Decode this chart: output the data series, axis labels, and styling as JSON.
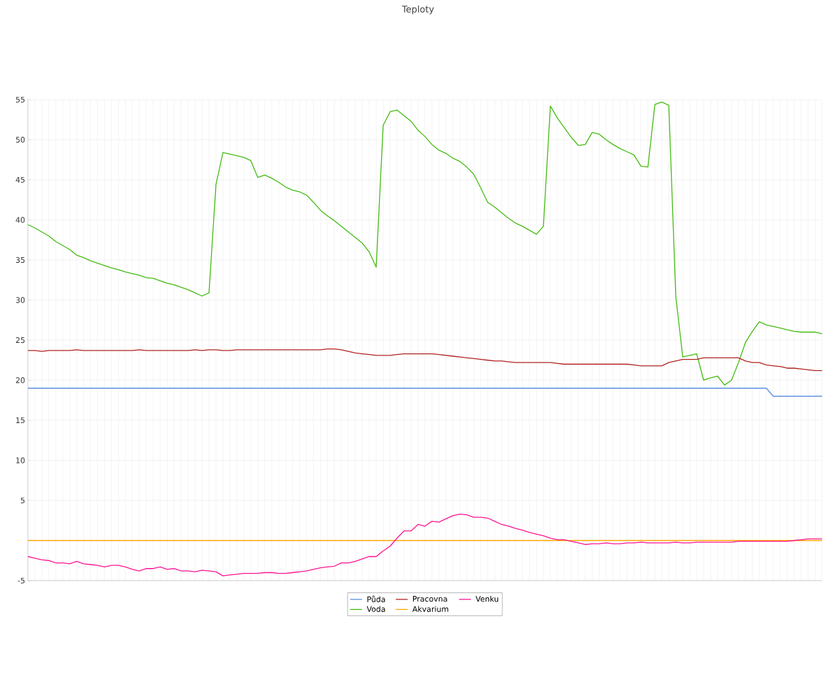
{
  "chart_data": {
    "type": "line",
    "title": "Teploty",
    "categories": [
      null,
      null,
      null,
      null,
      null,
      null,
      null,
      null,
      null,
      null,
      null,
      null,
      null,
      null,
      null,
      null,
      null,
      null,
      null,
      null,
      null,
      null,
      null,
      null,
      null,
      null,
      null,
      null,
      null,
      null,
      null,
      null,
      null,
      null,
      null,
      null,
      null,
      null,
      null,
      null,
      null,
      null,
      null,
      null,
      null,
      null,
      null,
      null,
      null,
      null,
      null,
      null,
      null,
      null,
      null,
      null,
      null,
      null,
      null,
      null,
      null,
      null,
      null,
      null,
      null,
      null,
      null,
      null,
      null,
      null,
      null,
      null,
      null,
      null,
      null,
      null,
      null,
      null,
      null,
      null,
      null,
      null,
      null,
      null,
      null,
      null,
      null,
      null,
      null,
      null,
      null,
      null,
      null,
      null,
      null,
      null,
      null,
      null,
      null,
      null,
      null,
      null,
      null,
      null,
      null,
      null,
      null,
      null,
      null,
      null,
      null,
      null,
      null,
      null,
      null
    ],
    "series": [
      {
        "name": "Půda",
        "color": "#5b8fe0",
        "values": [
          19,
          19,
          19,
          19,
          19,
          19,
          19,
          19,
          19,
          19,
          19,
          19,
          19,
          19,
          19,
          19,
          19,
          19,
          19,
          19,
          19,
          19,
          19,
          19,
          19,
          19,
          19,
          19,
          19,
          19,
          19,
          19,
          19,
          19,
          19,
          19,
          19,
          19,
          19,
          19,
          19,
          19,
          19,
          19,
          19,
          19,
          19,
          19,
          19,
          19,
          19,
          19,
          19,
          19,
          19,
          19,
          19,
          19,
          19,
          19,
          19,
          19,
          19,
          19,
          19,
          19,
          19,
          19,
          19,
          19,
          19,
          19,
          19,
          19,
          19,
          19,
          19,
          19,
          19,
          19,
          19,
          19,
          19,
          19,
          19,
          19,
          19,
          19,
          19,
          19,
          19,
          19,
          19,
          19,
          19,
          19,
          19,
          19,
          19,
          19,
          19,
          19,
          19,
          19,
          19,
          19,
          19,
          18,
          18,
          18,
          18,
          18,
          18,
          18,
          18
        ]
      },
      {
        "name": "Voda",
        "color": "#44bb11",
        "values": [
          39.4,
          39.0,
          38.5,
          38.0,
          37.3,
          36.8,
          36.3,
          35.6,
          35.3,
          34.9,
          34.6,
          34.3,
          34.0,
          33.8,
          33.5,
          33.3,
          33.1,
          32.8,
          32.7,
          32.4,
          32.1,
          31.9,
          31.6,
          31.3,
          30.9,
          30.5,
          30.9,
          44.4,
          48.4,
          48.2,
          48.0,
          47.8,
          47.4,
          45.3,
          45.6,
          45.2,
          44.7,
          44.1,
          43.7,
          43.5,
          43.1,
          42.2,
          41.2,
          40.5,
          39.9,
          39.2,
          38.5,
          37.8,
          37.1,
          36.0,
          34.1,
          51.8,
          53.5,
          53.7,
          53.0,
          52.3,
          51.2,
          50.4,
          49.4,
          48.7,
          48.3,
          47.7,
          47.3,
          46.6,
          45.7,
          44.0,
          42.2,
          41.6,
          40.9,
          40.2,
          39.6,
          39.2,
          38.7,
          38.2,
          39.2,
          54.2,
          52.7,
          51.5,
          50.3,
          49.3,
          49.4,
          50.9,
          50.7,
          50.0,
          49.4,
          48.9,
          48.5,
          48.1,
          46.7,
          46.6,
          54.4,
          54.7,
          54.3,
          30.5,
          22.9,
          23.1,
          23.3,
          20.0,
          20.3,
          20.5,
          19.4,
          20.0,
          22.2,
          24.7,
          26.1,
          27.3,
          26.9,
          26.7,
          26.5,
          26.3,
          26.1,
          26.0,
          26.0,
          26.0,
          25.8
        ]
      },
      {
        "name": "Pracovna",
        "color": "#b22222",
        "values": [
          23.7,
          23.7,
          23.6,
          23.7,
          23.7,
          23.7,
          23.7,
          23.8,
          23.7,
          23.7,
          23.7,
          23.7,
          23.7,
          23.7,
          23.7,
          23.7,
          23.8,
          23.7,
          23.7,
          23.7,
          23.7,
          23.7,
          23.7,
          23.7,
          23.8,
          23.7,
          23.8,
          23.8,
          23.7,
          23.7,
          23.8,
          23.8,
          23.8,
          23.8,
          23.8,
          23.8,
          23.8,
          23.8,
          23.8,
          23.8,
          23.8,
          23.8,
          23.8,
          23.9,
          23.9,
          23.8,
          23.6,
          23.4,
          23.3,
          23.2,
          23.1,
          23.1,
          23.1,
          23.2,
          23.3,
          23.3,
          23.3,
          23.3,
          23.3,
          23.2,
          23.1,
          23.0,
          22.9,
          22.8,
          22.7,
          22.6,
          22.5,
          22.4,
          22.4,
          22.3,
          22.2,
          22.2,
          22.2,
          22.2,
          22.2,
          22.2,
          22.1,
          22.0,
          22.0,
          22.0,
          22.0,
          22.0,
          22.0,
          22.0,
          22.0,
          22.0,
          22.0,
          21.9,
          21.8,
          21.8,
          21.8,
          21.8,
          22.2,
          22.4,
          22.6,
          22.6,
          22.6,
          22.8,
          22.8,
          22.8,
          22.8,
          22.8,
          22.8,
          22.4,
          22.2,
          22.2,
          21.9,
          21.8,
          21.7,
          21.5,
          21.5,
          21.4,
          21.3,
          21.2,
          21.2
        ]
      },
      {
        "name": "Akvarium",
        "color": "#ffa500",
        "values": [
          0,
          0,
          0,
          0,
          0,
          0,
          0,
          0,
          0,
          0,
          0,
          0,
          0,
          0,
          0,
          0,
          0,
          0,
          0,
          0,
          0,
          0,
          0,
          0,
          0,
          0,
          0,
          0,
          0,
          0,
          0,
          0,
          0,
          0,
          0,
          0,
          0,
          0,
          0,
          0,
          0,
          0,
          0,
          0,
          0,
          0,
          0,
          0,
          0,
          0,
          0,
          0,
          0,
          0,
          0,
          0,
          0,
          0,
          0,
          0,
          0,
          0,
          0,
          0,
          0,
          0,
          0,
          0,
          0,
          0,
          0,
          0,
          0,
          0,
          0,
          0,
          0,
          0,
          0,
          0,
          0,
          0,
          0,
          0,
          0,
          0,
          0,
          0,
          0,
          0,
          0,
          0,
          0,
          0,
          0,
          0,
          0,
          0,
          0,
          0,
          0,
          0,
          0,
          0,
          0,
          0,
          0,
          0,
          0,
          0,
          0,
          0,
          0,
          0,
          0
        ]
      },
      {
        "name": "Venku",
        "color": "#ff1493",
        "values": [
          -2.0,
          -2.2,
          -2.4,
          -2.5,
          -2.8,
          -2.8,
          -2.9,
          -2.6,
          -2.9,
          -3.0,
          -3.1,
          -3.3,
          -3.1,
          -3.1,
          -3.3,
          -3.6,
          -3.8,
          -3.5,
          -3.5,
          -3.3,
          -3.6,
          -3.5,
          -3.8,
          -3.8,
          -3.9,
          -3.7,
          -3.8,
          -3.9,
          -4.4,
          -4.3,
          -4.2,
          -4.1,
          -4.1,
          -4.1,
          -4.0,
          -4.0,
          -4.1,
          -4.1,
          -4.0,
          -3.9,
          -3.8,
          -3.6,
          -3.4,
          -3.3,
          -3.2,
          -2.8,
          -2.8,
          -2.6,
          -2.3,
          -2.0,
          -2.0,
          -1.3,
          -0.7,
          0.3,
          1.2,
          1.2,
          2.0,
          1.8,
          2.4,
          2.3,
          2.7,
          3.1,
          3.3,
          3.2,
          2.9,
          2.9,
          2.8,
          2.4,
          2.0,
          1.8,
          1.5,
          1.3,
          1.0,
          0.8,
          0.6,
          0.3,
          0.1,
          0.1,
          -0.1,
          -0.3,
          -0.5,
          -0.4,
          -0.4,
          -0.3,
          -0.4,
          -0.4,
          -0.3,
          -0.3,
          -0.2,
          -0.3,
          -0.3,
          -0.3,
          -0.3,
          -0.2,
          -0.3,
          -0.3,
          -0.2,
          -0.2,
          -0.2,
          -0.2,
          -0.2,
          -0.2,
          -0.1,
          -0.1,
          -0.1,
          -0.1,
          -0.1,
          -0.1,
          -0.1,
          -0.1,
          0.0,
          0.1,
          0.2,
          0.2,
          0.2
        ]
      }
    ],
    "ylim": [
      -5,
      55
    ],
    "yticks": [
      -5,
      {
        "value": 0,
        "label": null
      },
      5,
      10,
      15,
      20,
      25,
      30,
      35,
      40,
      45,
      50,
      55
    ],
    "grid": true,
    "legend": "bottom",
    "tick_labels": "y",
    "marker": "none",
    "line_style": "solid"
  }
}
